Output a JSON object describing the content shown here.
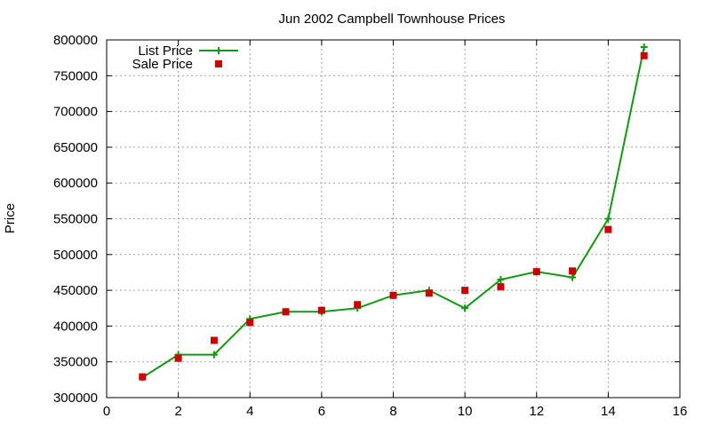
{
  "chart_data": {
    "type": "line",
    "title": "Jun 2002 Campbell Townhouse Prices",
    "xlabel": "",
    "ylabel": "Price",
    "xlim": [
      0,
      16
    ],
    "ylim": [
      300000,
      800000
    ],
    "xticks": [
      0,
      2,
      4,
      6,
      8,
      10,
      12,
      14,
      16
    ],
    "yticks": [
      300000,
      350000,
      400000,
      450000,
      500000,
      550000,
      600000,
      650000,
      700000,
      750000,
      800000
    ],
    "grid": true,
    "legend_position": "top-left",
    "series": [
      {
        "name": "List Price",
        "style": "line+cross",
        "color": "#119911",
        "x": [
          1,
          2,
          3,
          4,
          5,
          6,
          7,
          8,
          9,
          10,
          11,
          12,
          13,
          14,
          15
        ],
        "y": [
          328000,
          360000,
          360000,
          410000,
          420000,
          420000,
          425000,
          443000,
          450000,
          425000,
          465000,
          476000,
          468000,
          550000,
          790000
        ]
      },
      {
        "name": "Sale Price",
        "style": "square",
        "color": "#cc0000",
        "x": [
          1,
          2,
          3,
          4,
          5,
          6,
          7,
          8,
          9,
          10,
          11,
          12,
          13,
          14,
          15
        ],
        "y": [
          329000,
          355000,
          380000,
          405000,
          420000,
          422000,
          430000,
          443000,
          446000,
          450000,
          455000,
          476000,
          477000,
          535000,
          778000
        ]
      }
    ]
  }
}
